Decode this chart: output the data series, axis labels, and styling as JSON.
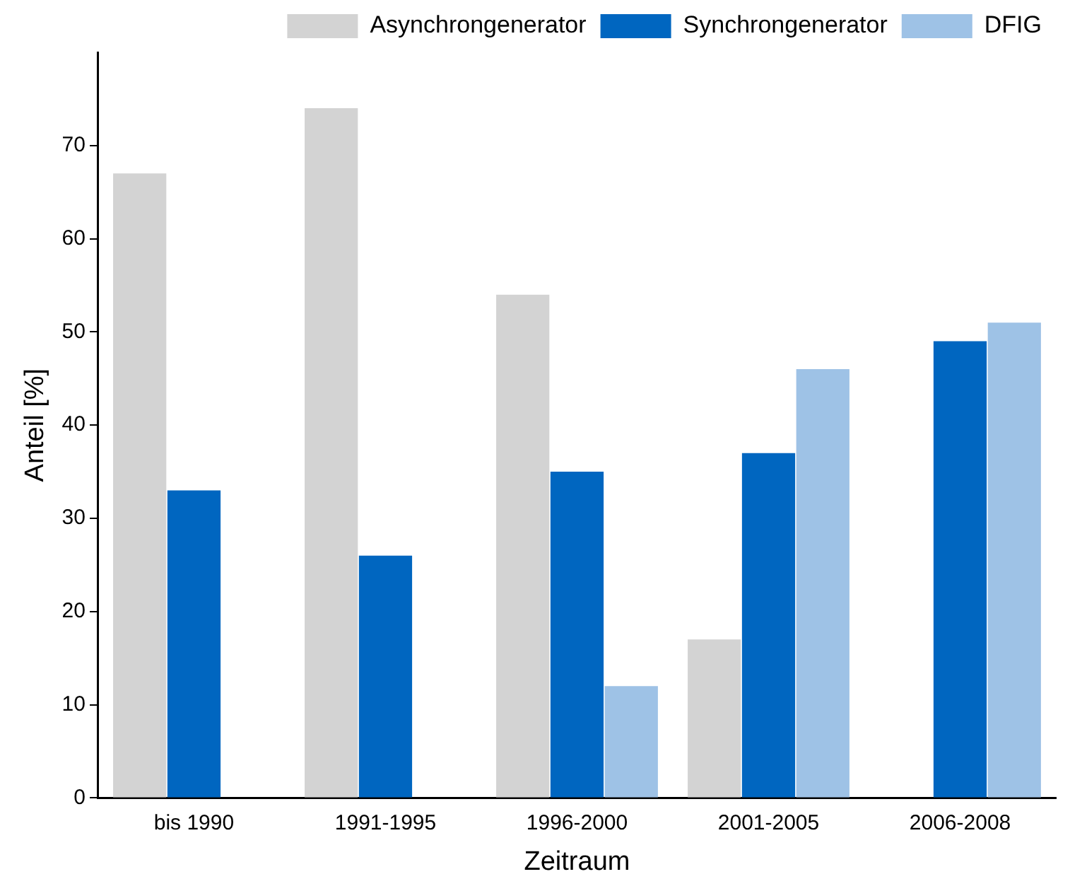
{
  "chart_data": {
    "type": "bar",
    "xlabel": "Zeitraum",
    "ylabel": "Anteil [%]",
    "categories": [
      "bis 1990",
      "1991-1995",
      "1996-2000",
      "2001-2005",
      "2006-2008"
    ],
    "series": [
      {
        "name": "Asynchrongenerator",
        "color": "#d3d3d3",
        "values": [
          67,
          74,
          54,
          17,
          null
        ]
      },
      {
        "name": "Synchrongenerator",
        "color": "#0066c0",
        "values": [
          33,
          26,
          35,
          37,
          49
        ]
      },
      {
        "name": "DFIG",
        "color": "#9ec2e6",
        "values": [
          null,
          null,
          12,
          46,
          51
        ]
      }
    ],
    "ylim": [
      0,
      80
    ],
    "yticks": [
      0,
      10,
      20,
      30,
      40,
      50,
      60,
      70
    ],
    "grid": false,
    "legend": "top right"
  }
}
